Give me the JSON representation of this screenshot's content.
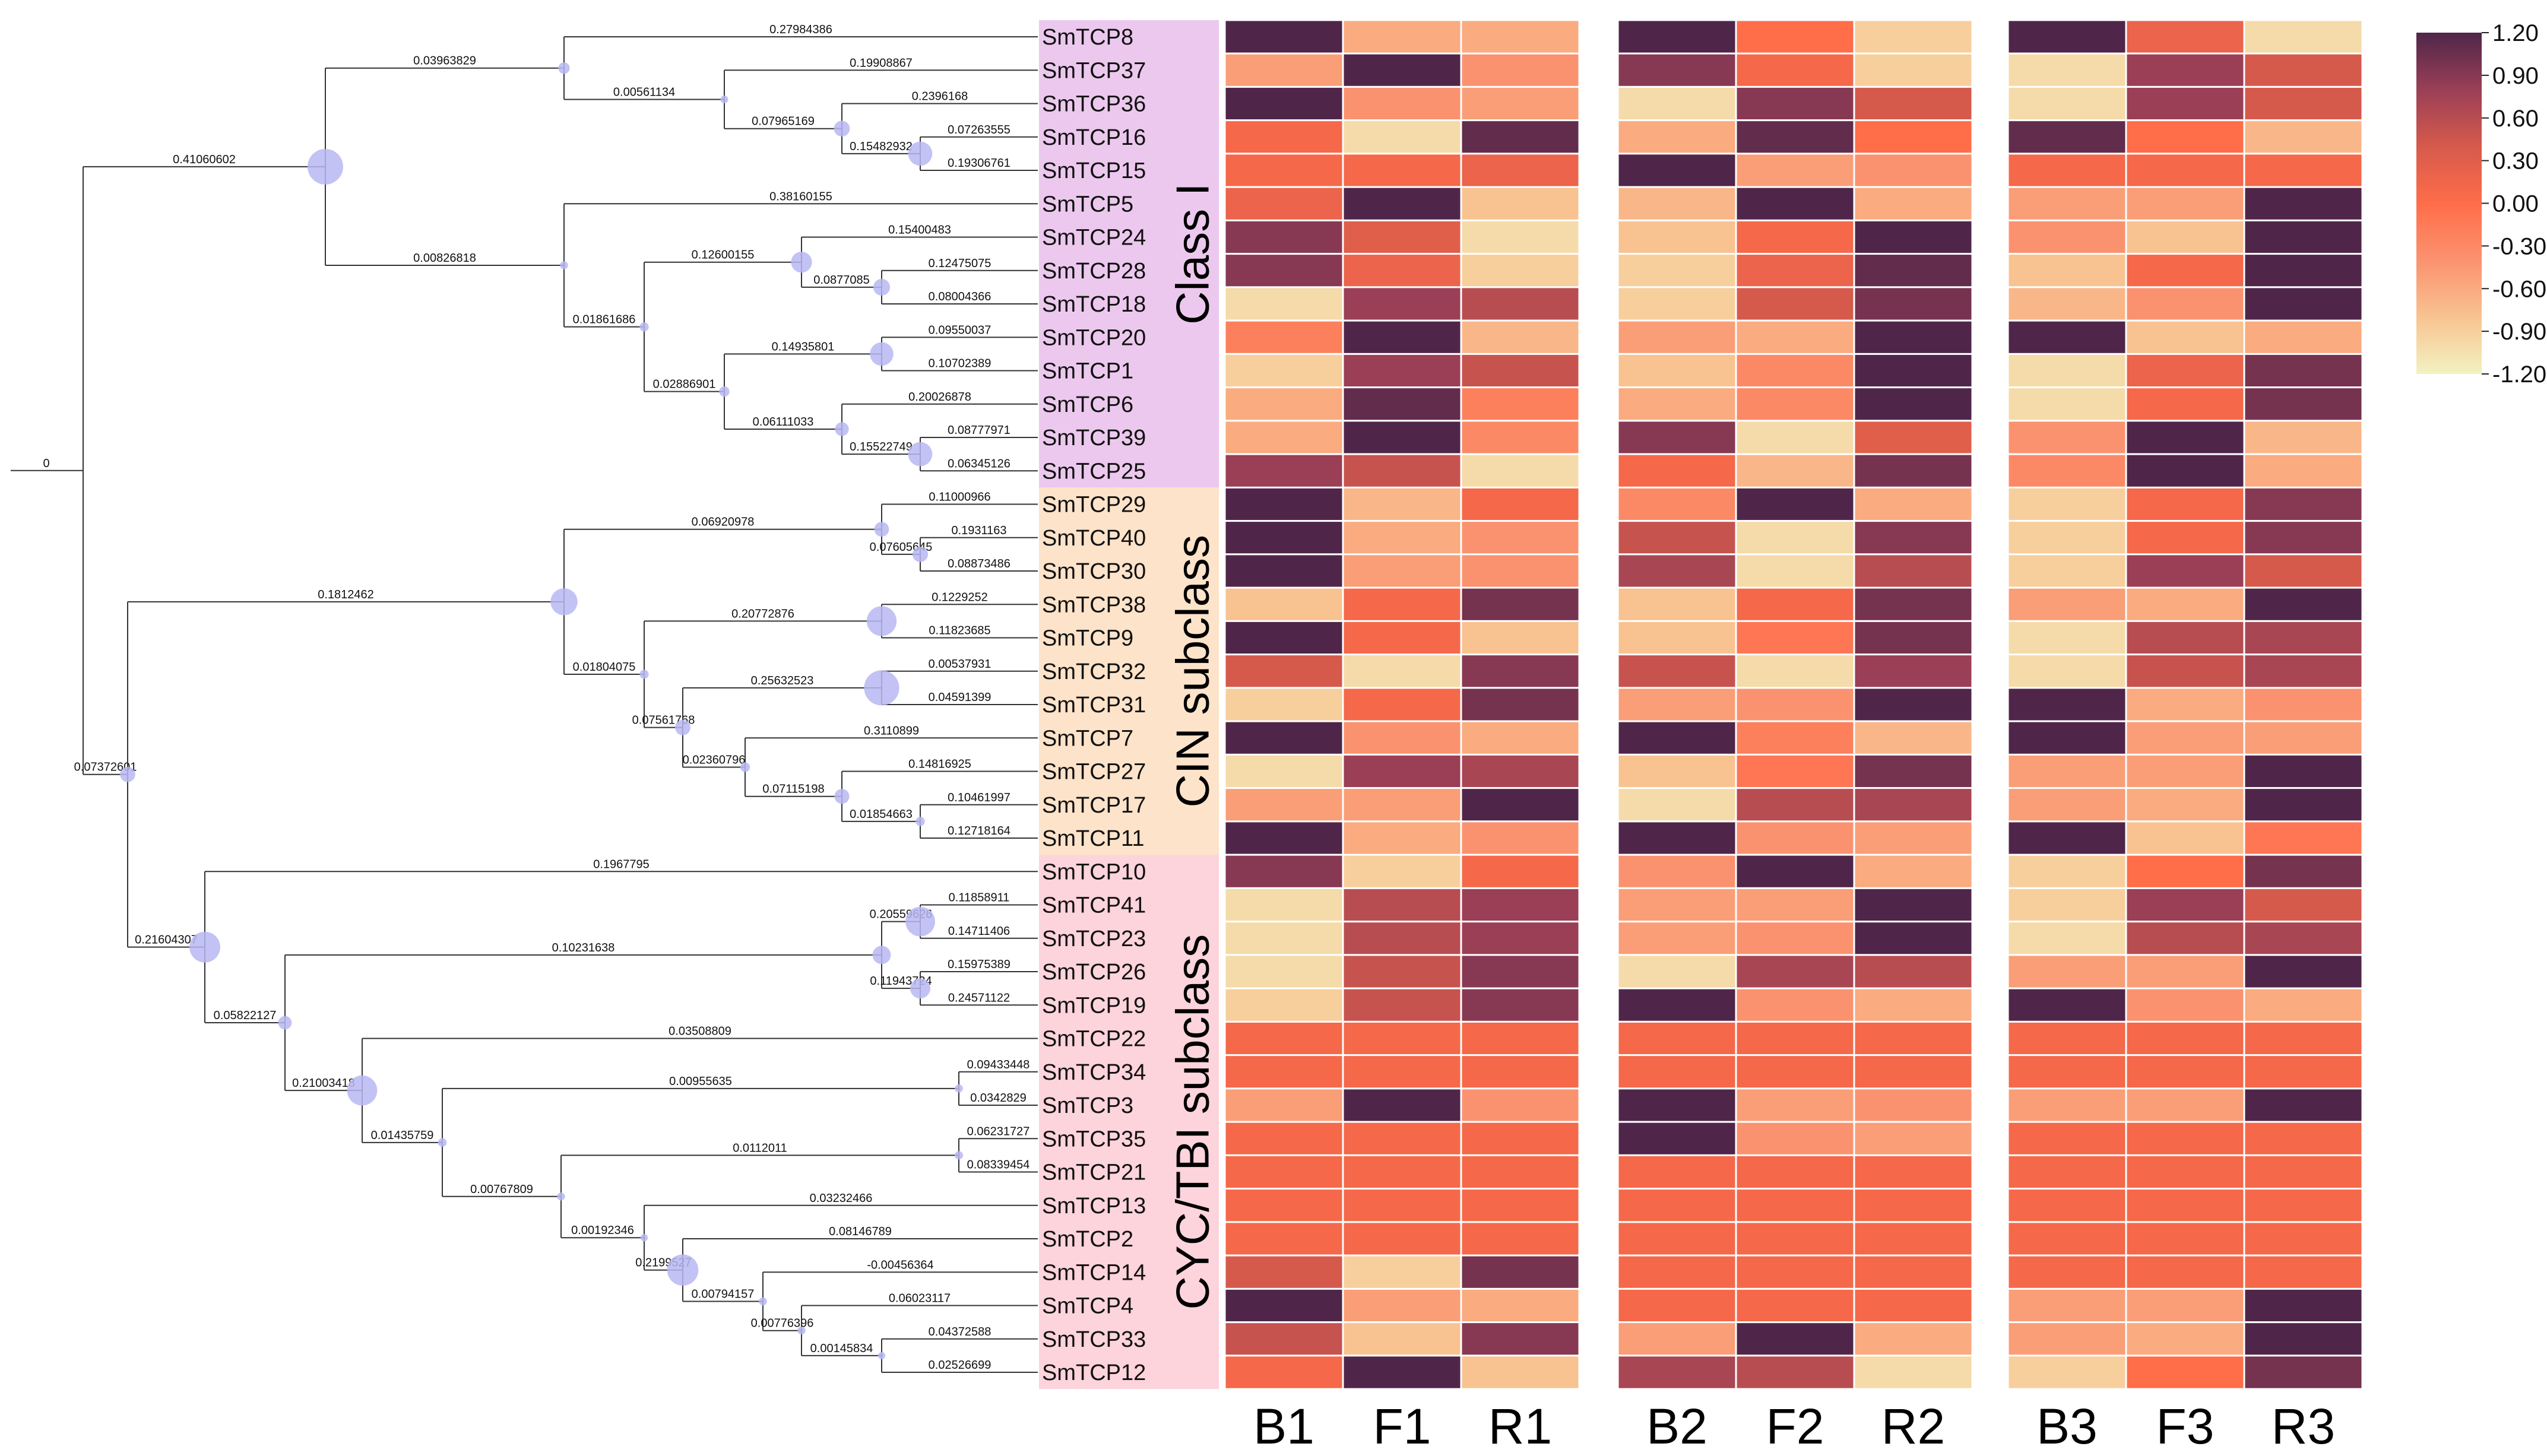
{
  "chart_data": {
    "type": "heatmap",
    "title": "",
    "tree_root_label": "0",
    "classes": [
      {
        "name": "Class I",
        "first": "SmTCP8",
        "last": "SmTCP25",
        "color": "#ecc8ee"
      },
      {
        "name": "CIN subclass",
        "first": "SmTCP29",
        "last": "SmTCP11",
        "color": "#fde3c9"
      },
      {
        "name": "CYC/TBI subclass",
        "first": "SmTCP10",
        "last": "SmTCP12",
        "color": "#fdd3dc"
      }
    ],
    "genes": [
      "SmTCP8",
      "SmTCP37",
      "SmTCP36",
      "SmTCP16",
      "SmTCP15",
      "SmTCP5",
      "SmTCP24",
      "SmTCP28",
      "SmTCP18",
      "SmTCP20",
      "SmTCP1",
      "SmTCP6",
      "SmTCP39",
      "SmTCP25",
      "SmTCP29",
      "SmTCP40",
      "SmTCP30",
      "SmTCP38",
      "SmTCP9",
      "SmTCP32",
      "SmTCP31",
      "SmTCP7",
      "SmTCP27",
      "SmTCP17",
      "SmTCP11",
      "SmTCP10",
      "SmTCP41",
      "SmTCP23",
      "SmTCP26",
      "SmTCP19",
      "SmTCP22",
      "SmTCP34",
      "SmTCP3",
      "SmTCP35",
      "SmTCP21",
      "SmTCP13",
      "SmTCP2",
      "SmTCP14",
      "SmTCP4",
      "SmTCP33",
      "SmTCP12"
    ],
    "samples": [
      "B1",
      "F1",
      "R1",
      "B2",
      "F2",
      "R2",
      "B3",
      "F3",
      "R3"
    ],
    "sample_groups": [
      [
        "B1",
        "F1",
        "R1"
      ],
      [
        "B2",
        "F2",
        "R2"
      ],
      [
        "B3",
        "F3",
        "R3"
      ]
    ],
    "values": [
      [
        1.2,
        -0.6,
        -0.6,
        1.2,
        0,
        -0.9,
        1.2,
        0.2,
        -1.0
      ],
      [
        -0.5,
        1.2,
        -0.4,
        0.9,
        0.1,
        -0.9,
        -1.0,
        0.8,
        0.4
      ],
      [
        1.2,
        -0.4,
        -0.5,
        -1.0,
        0.9,
        0.4,
        -1.0,
        0.8,
        0.4
      ],
      [
        0.1,
        -1.0,
        1.1,
        -0.6,
        1.1,
        0.0,
        1.1,
        0.0,
        -0.7
      ],
      [
        0.1,
        0.1,
        0.2,
        1.2,
        -0.5,
        -0.4,
        0.1,
        0.1,
        0.1
      ],
      [
        0.2,
        1.2,
        -0.8,
        -0.7,
        1.2,
        -0.6,
        -0.5,
        -0.5,
        1.2
      ],
      [
        0.9,
        0.3,
        -1.0,
        -0.8,
        0.1,
        1.2,
        -0.4,
        -0.8,
        1.2
      ],
      [
        0.9,
        0.2,
        -0.9,
        -0.9,
        0.2,
        1.1,
        -0.8,
        0.1,
        1.2
      ],
      [
        -1.0,
        0.8,
        0.6,
        -0.9,
        0.4,
        1.0,
        -0.7,
        -0.4,
        1.2
      ],
      [
        -0.2,
        1.2,
        -0.7,
        -0.5,
        -0.6,
        1.2,
        1.2,
        -0.8,
        -0.6
      ],
      [
        -0.9,
        0.8,
        0.5,
        -0.8,
        -0.3,
        1.2,
        -1.0,
        0.2,
        1.0
      ],
      [
        -0.6,
        1.1,
        -0.2,
        -0.6,
        -0.3,
        1.2,
        -1.0,
        0.1,
        1.0
      ],
      [
        -0.6,
        1.2,
        -0.3,
        0.9,
        -1.0,
        0.3,
        -0.4,
        1.2,
        -0.7
      ],
      [
        0.8,
        0.5,
        -1.0,
        0.1,
        -0.7,
        1.0,
        -0.3,
        1.2,
        -0.6
      ],
      [
        1.2,
        -0.7,
        0.1,
        -0.3,
        1.2,
        -0.6,
        -0.9,
        0.1,
        0.9
      ],
      [
        1.2,
        -0.6,
        -0.4,
        0.5,
        -1.0,
        0.9,
        -0.9,
        0.1,
        0.9
      ],
      [
        1.2,
        -0.5,
        -0.4,
        0.7,
        -1.0,
        0.6,
        -0.9,
        0.8,
        0.4
      ],
      [
        -0.8,
        0.1,
        1.0,
        -0.8,
        0.1,
        1.0,
        -0.5,
        -0.6,
        1.2
      ],
      [
        1.2,
        0.1,
        -0.8,
        -0.8,
        -0.1,
        1.0,
        -1.0,
        0.6,
        0.7
      ],
      [
        0.4,
        -1.0,
        0.9,
        0.5,
        -1.0,
        0.8,
        -1.0,
        0.5,
        0.7
      ],
      [
        -0.9,
        0.1,
        1.0,
        -0.5,
        -0.4,
        1.2,
        1.2,
        -0.6,
        -0.4
      ],
      [
        1.2,
        -0.4,
        -0.6,
        1.2,
        -0.2,
        -0.7,
        1.2,
        -0.5,
        -0.5
      ],
      [
        -1.0,
        0.8,
        0.7,
        -0.8,
        -0.1,
        1.0,
        -0.5,
        -0.5,
        1.2
      ],
      [
        -0.5,
        -0.5,
        1.2,
        -1.0,
        0.6,
        0.7,
        -0.5,
        -0.6,
        1.2
      ],
      [
        1.2,
        -0.6,
        -0.4,
        1.2,
        -0.4,
        -0.5,
        1.2,
        -0.8,
        -0.1
      ],
      [
        0.9,
        -0.9,
        0.1,
        -0.4,
        1.2,
        -0.6,
        -0.9,
        0.0,
        1.0
      ],
      [
        -1.0,
        0.6,
        0.8,
        -0.5,
        -0.5,
        1.2,
        -0.9,
        0.8,
        0.4
      ],
      [
        -1.0,
        0.6,
        0.8,
        -0.5,
        -0.4,
        1.2,
        -1.0,
        0.6,
        0.7
      ],
      [
        -1.0,
        0.5,
        0.9,
        -1.0,
        0.7,
        0.6,
        -0.5,
        -0.5,
        1.2
      ],
      [
        -0.9,
        0.5,
        0.9,
        1.2,
        -0.4,
        -0.6,
        1.2,
        -0.4,
        -0.6
      ],
      [
        0.1,
        0.1,
        0.1,
        0.1,
        0.1,
        0.1,
        0.1,
        0.1,
        0.1
      ],
      [
        0.1,
        0.1,
        0.1,
        0.1,
        0.1,
        0.1,
        0.1,
        0.1,
        0.1
      ],
      [
        -0.5,
        1.2,
        -0.4,
        1.2,
        -0.5,
        -0.4,
        -0.5,
        -0.5,
        1.2
      ],
      [
        0.1,
        0.1,
        0.1,
        1.2,
        -0.4,
        -0.5,
        0.1,
        0.1,
        0.1
      ],
      [
        0.1,
        0.1,
        0.1,
        0.1,
        0.1,
        0.1,
        0.1,
        0.1,
        0.1
      ],
      [
        0.1,
        0.1,
        0.1,
        0.1,
        0.1,
        0.1,
        0.1,
        0.1,
        0.1
      ],
      [
        0.1,
        0.1,
        0.1,
        0.1,
        0.1,
        0.1,
        0.1,
        0.1,
        0.1
      ],
      [
        0.4,
        -0.9,
        1.0,
        0.1,
        0.1,
        0.1,
        0.1,
        0.1,
        0.1
      ],
      [
        1.2,
        -0.5,
        -0.6,
        0.1,
        0.1,
        0.1,
        -0.5,
        -0.5,
        1.2
      ],
      [
        0.5,
        -0.8,
        0.9,
        -0.5,
        1.2,
        -0.6,
        -0.5,
        -0.6,
        1.2
      ],
      [
        0.1,
        1.2,
        -0.8,
        0.7,
        0.6,
        -1.0,
        -0.9,
        0.0,
        1.0
      ]
    ],
    "colorbar": {
      "min": -1.2,
      "max": 1.2,
      "ticks": [
        "1.20",
        "0.90",
        "0.60",
        "0.30",
        "0.00",
        "-0.30",
        "-0.60",
        "-0.90",
        "-1.20"
      ],
      "colors": [
        "#f2f2c1",
        "#f8c391",
        "#fb926f",
        "#ff6d49",
        "#d65a4c",
        "#9a3f56",
        "#4f2649"
      ]
    },
    "tree": {
      "branches": [
        {
          "from": "root",
          "to": "A",
          "label": "0.41060602"
        },
        {
          "from": "root",
          "to": "B",
          "label": "0.07372601"
        },
        {
          "from": "A",
          "to": "A1",
          "label": "0.03963829"
        },
        {
          "from": "A",
          "to": "A2",
          "label": "0.00826818"
        },
        {
          "from": "A1",
          "to": "SmTCP8",
          "label": "0.27984386"
        },
        {
          "from": "A1",
          "to": "A1b",
          "label": "0.00561134"
        },
        {
          "from": "A1b",
          "to": "SmTCP37",
          "label": "0.19908867"
        },
        {
          "from": "A1b",
          "to": "A1c",
          "label": "0.07965169"
        },
        {
          "from": "A1c",
          "to": "SmTCP36",
          "label": "0.2396168"
        },
        {
          "from": "A1c",
          "to": "A1d",
          "label": "0.15482932"
        },
        {
          "from": "A1d",
          "to": "SmTCP16",
          "label": "0.07263555"
        },
        {
          "from": "A1d",
          "to": "SmTCP15",
          "label": "0.19306761"
        },
        {
          "from": "A2",
          "to": "SmTCP5",
          "label": "0.38160155"
        },
        {
          "from": "A2",
          "to": "A2b",
          "label": "0.01861686"
        },
        {
          "from": "A2b",
          "to": "A2c",
          "label": "0.12600155"
        },
        {
          "from": "A2c",
          "to": "SmTCP24",
          "label": "0.15400483"
        },
        {
          "from": "A2c",
          "to": "A2d",
          "label": "0.0877085"
        },
        {
          "from": "A2d",
          "to": "SmTCP28",
          "label": "0.12475075"
        },
        {
          "from": "A2d",
          "to": "SmTCP18",
          "label": "0.08004366"
        },
        {
          "from": "A2b",
          "to": "A2e",
          "label": "0.02886901"
        },
        {
          "from": "A2e",
          "to": "A2f",
          "label": "0.14935801"
        },
        {
          "from": "A2f",
          "to": "SmTCP20",
          "label": "0.09550037"
        },
        {
          "from": "A2f",
          "to": "SmTCP1",
          "label": "0.10702389"
        },
        {
          "from": "A2e",
          "to": "A2g",
          "label": "0.06111033"
        },
        {
          "from": "A2g",
          "to": "SmTCP6",
          "label": "0.20026878"
        },
        {
          "from": "A2g",
          "to": "A2h",
          "label": "0.15522749"
        },
        {
          "from": "A2h",
          "to": "SmTCP39",
          "label": "0.08777971"
        },
        {
          "from": "A2h",
          "to": "SmTCP25",
          "label": "0.06345126"
        },
        {
          "from": "B",
          "to": "C",
          "label": "0.1812462"
        },
        {
          "from": "B",
          "to": "D",
          "label": "0.21604307"
        },
        {
          "from": "C",
          "to": "C1",
          "label": "0.06920978"
        },
        {
          "from": "C1",
          "to": "SmTCP29",
          "label": "0.11000966"
        },
        {
          "from": "C1",
          "to": "C1b",
          "label": "0.07605645"
        },
        {
          "from": "C1b",
          "to": "SmTCP40",
          "label": "0.1931163"
        },
        {
          "from": "C1b",
          "to": "SmTCP30",
          "label": "0.08873486"
        },
        {
          "from": "C",
          "to": "C2",
          "label": "0.01804075"
        },
        {
          "from": "C2",
          "to": "C2a",
          "label": "0.20772876"
        },
        {
          "from": "C2a",
          "to": "SmTCP38",
          "label": "0.1229252"
        },
        {
          "from": "C2a",
          "to": "SmTCP9",
          "label": "0.11823685"
        },
        {
          "from": "C2",
          "to": "C2b",
          "label": "0.07561768"
        },
        {
          "from": "C2b",
          "to": "C2c",
          "label": "0.25632523"
        },
        {
          "from": "C2c",
          "to": "SmTCP32",
          "label": "0.00537931"
        },
        {
          "from": "C2c",
          "to": "SmTCP31",
          "label": "0.04591399"
        },
        {
          "from": "C2b",
          "to": "C2d",
          "label": "0.02360796"
        },
        {
          "from": "C2d",
          "to": "SmTCP7",
          "label": "0.3110899"
        },
        {
          "from": "C2d",
          "to": "C2e",
          "label": "0.07115198"
        },
        {
          "from": "C2e",
          "to": "SmTCP27",
          "label": "0.14816925"
        },
        {
          "from": "C2e",
          "to": "C2f",
          "label": "0.01854663"
        },
        {
          "from": "C2f",
          "to": "SmTCP17",
          "label": "0.10461997"
        },
        {
          "from": "C2f",
          "to": "SmTCP11",
          "label": "0.12718164"
        },
        {
          "from": "D",
          "to": "SmTCP10",
          "label": "0.1967795"
        },
        {
          "from": "D",
          "to": "D2",
          "label": "0.05822127"
        },
        {
          "from": "D2",
          "to": "D3",
          "label": "0.10231638"
        },
        {
          "from": "D3",
          "to": "D3a",
          "label": "0.20559626"
        },
        {
          "from": "D3a",
          "to": "SmTCP41",
          "label": "0.11858911"
        },
        {
          "from": "D3a",
          "to": "SmTCP23",
          "label": "0.14711406"
        },
        {
          "from": "D3",
          "to": "D3b",
          "label": "0.11943724"
        },
        {
          "from": "D3b",
          "to": "SmTCP26",
          "label": "0.15975389"
        },
        {
          "from": "D3b",
          "to": "SmTCP19",
          "label": "0.24571122"
        },
        {
          "from": "D2",
          "to": "D4",
          "label": "0.21003418"
        },
        {
          "from": "D4",
          "to": "SmTCP22",
          "label": "0.03508809"
        },
        {
          "from": "D4",
          "to": "D5",
          "label": "0.01435759"
        },
        {
          "from": "D5",
          "to": "D5a",
          "label": "0.00955635"
        },
        {
          "from": "D5a",
          "to": "SmTCP34",
          "label": "0.09433448"
        },
        {
          "from": "D5a",
          "to": "SmTCP3",
          "label": "0.0342829"
        },
        {
          "from": "D5",
          "to": "D6",
          "label": "0.00767809"
        },
        {
          "from": "D6",
          "to": "D6a",
          "label": "0.0112011"
        },
        {
          "from": "D6a",
          "to": "SmTCP35",
          "label": "0.06231727"
        },
        {
          "from": "D6a",
          "to": "SmTCP21",
          "label": "0.08339454"
        },
        {
          "from": "D6",
          "to": "D7",
          "label": "0.00192346"
        },
        {
          "from": "D7",
          "to": "SmTCP13",
          "label": "0.03232466"
        },
        {
          "from": "D7",
          "to": "D8",
          "label": "0.2199527"
        },
        {
          "from": "D8",
          "to": "SmTCP2",
          "label": "0.08146789"
        },
        {
          "from": "D8",
          "to": "D9",
          "label": "0.00794157"
        },
        {
          "from": "D9",
          "to": "SmTCP14",
          "label": "-0.00456364"
        },
        {
          "from": "D9",
          "to": "D10",
          "label": "0.00776396"
        },
        {
          "from": "D10",
          "to": "SmTCP4",
          "label": "0.06023117"
        },
        {
          "from": "D10",
          "to": "D11",
          "label": "0.00145834"
        },
        {
          "from": "D11",
          "to": "SmTCP33",
          "label": "0.04372588"
        },
        {
          "from": "D11",
          "to": "SmTCP12",
          "label": "0.02526699"
        }
      ]
    }
  }
}
